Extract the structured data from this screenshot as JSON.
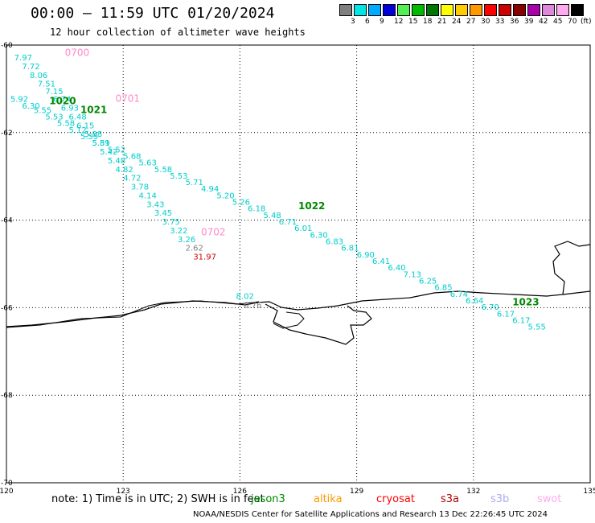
{
  "title": "00:00 – 11:59 UTC 01/20/2024",
  "subtitle": "12 hour collection of altimeter wave heights",
  "legend": {
    "labels": [
      "3",
      "6",
      "9",
      "12",
      "15",
      "18",
      "21",
      "24",
      "27",
      "30",
      "33",
      "36",
      "39",
      "42",
      "45",
      "70"
    ],
    "unit": "(ft)",
    "colors": [
      "#7f7f7f",
      "#00e5e5",
      "#00aaff",
      "#0000dd",
      "#55ee55",
      "#00bb00",
      "#007700",
      "#ffff00",
      "#ffcc00",
      "#ff9900",
      "#ff0000",
      "#cc0000",
      "#880000",
      "#aa00aa",
      "#dd88dd",
      "#ffaaee",
      "#000000"
    ]
  },
  "axes": {
    "lon_ticks": [
      "120",
      "123",
      "126",
      "129",
      "132",
      "135"
    ],
    "lat_ticks": [
      "-60",
      "-62",
      "-64",
      "-66",
      "-68",
      "-70"
    ],
    "lon_range": [
      120,
      135
    ],
    "lat_range": [
      -70,
      -60
    ],
    "grid": true
  },
  "tracks": [
    {
      "label": "0700",
      "label_color": "#ff88cc",
      "points": [
        {
          "lon": 120.2,
          "lat": -60.35,
          "v": "7.97"
        },
        {
          "lon": 120.4,
          "lat": -60.55,
          "v": "7.72"
        },
        {
          "lon": 120.6,
          "lat": -60.75,
          "v": "8.06"
        },
        {
          "lon": 120.8,
          "lat": -60.95,
          "v": "7.51"
        },
        {
          "lon": 121.0,
          "lat": -61.12,
          "v": "7.15"
        },
        {
          "lon": 121.2,
          "lat": -61.3,
          "v": "6.74"
        },
        {
          "lon": 121.4,
          "lat": -61.5,
          "v": "6.93"
        },
        {
          "lon": 121.6,
          "lat": -61.7,
          "v": "6.48"
        },
        {
          "lon": 121.8,
          "lat": -61.9,
          "v": "6.15"
        },
        {
          "lon": 122.0,
          "lat": -62.1,
          "v": "5.88"
        },
        {
          "lon": 122.2,
          "lat": -62.3,
          "v": "5.59"
        },
        {
          "lon": 122.4,
          "lat": -62.5,
          "v": "5.42"
        },
        {
          "lon": 122.6,
          "lat": -62.7,
          "v": "5.48"
        },
        {
          "lon": 122.8,
          "lat": -62.9,
          "v": "4.82"
        },
        {
          "lon": 123.0,
          "lat": -63.1,
          "v": "4.72"
        },
        {
          "lon": 123.2,
          "lat": -63.3,
          "v": "3.78"
        },
        {
          "lon": 123.4,
          "lat": -63.5,
          "v": "4.14"
        },
        {
          "lon": 123.6,
          "lat": -63.7,
          "v": "3.43"
        },
        {
          "lon": 123.8,
          "lat": -63.9,
          "v": "3.45"
        },
        {
          "lon": 124.0,
          "lat": -64.1,
          "v": "3.75"
        },
        {
          "lon": 124.2,
          "lat": -64.3,
          "v": "3.22"
        },
        {
          "lon": 124.4,
          "lat": -64.5,
          "v": "3.26"
        },
        {
          "lon": 124.6,
          "lat": -64.7,
          "v": "2.62",
          "color": "#7f7f7f"
        },
        {
          "lon": 124.8,
          "lat": -64.9,
          "v": "31.97",
          "color": "#cc0000"
        }
      ]
    },
    {
      "label": "0701",
      "label_color": "#ff88cc",
      "points": [
        {
          "lon": 120.1,
          "lat": -61.3,
          "v": "5.92"
        },
        {
          "lon": 120.4,
          "lat": -61.45,
          "v": "6.30"
        },
        {
          "lon": 120.7,
          "lat": -61.55,
          "v": "5.55"
        },
        {
          "lon": 121.0,
          "lat": -61.7,
          "v": "5.53"
        },
        {
          "lon": 121.3,
          "lat": -61.85,
          "v": "5.58"
        },
        {
          "lon": 121.6,
          "lat": -62.0,
          "v": "5.12"
        },
        {
          "lon": 121.9,
          "lat": -62.15,
          "v": "5.55"
        },
        {
          "lon": 122.2,
          "lat": -62.3,
          "v": "5.81"
        },
        {
          "lon": 122.6,
          "lat": -62.45,
          "v": "5.52"
        },
        {
          "lon": 123.0,
          "lat": -62.6,
          "v": "5.68"
        },
        {
          "lon": 123.4,
          "lat": -62.75,
          "v": "5.63"
        },
        {
          "lon": 123.8,
          "lat": -62.9,
          "v": "5.58"
        },
        {
          "lon": 124.2,
          "lat": -63.05,
          "v": "5.53"
        },
        {
          "lon": 124.6,
          "lat": -63.2,
          "v": "5.71"
        },
        {
          "lon": 125.0,
          "lat": -63.35,
          "v": "4.94"
        },
        {
          "lon": 125.4,
          "lat": -63.5,
          "v": "5.20"
        },
        {
          "lon": 125.8,
          "lat": -63.65,
          "v": "5.26"
        },
        {
          "lon": 126.2,
          "lat": -63.8,
          "v": "6.18"
        },
        {
          "lon": 126.6,
          "lat": -63.95,
          "v": "5.48"
        },
        {
          "lon": 127.0,
          "lat": -64.1,
          "v": "6.71"
        },
        {
          "lon": 127.4,
          "lat": -64.25,
          "v": "6.01"
        },
        {
          "lon": 127.8,
          "lat": -64.4,
          "v": "6.30"
        },
        {
          "lon": 128.2,
          "lat": -64.55,
          "v": "6.83"
        },
        {
          "lon": 128.6,
          "lat": -64.7,
          "v": "6.81"
        },
        {
          "lon": 129.0,
          "lat": -64.85,
          "v": "6.90"
        },
        {
          "lon": 129.4,
          "lat": -65.0,
          "v": "6.41"
        },
        {
          "lon": 129.8,
          "lat": -65.15,
          "v": "6.40"
        },
        {
          "lon": 130.2,
          "lat": -65.3,
          "v": "7.13"
        },
        {
          "lon": 130.6,
          "lat": -65.45,
          "v": "6.25"
        },
        {
          "lon": 131.0,
          "lat": -65.6,
          "v": "6.85"
        },
        {
          "lon": 131.4,
          "lat": -65.75,
          "v": "6.74"
        },
        {
          "lon": 131.8,
          "lat": -65.9,
          "v": "6.64"
        },
        {
          "lon": 132.2,
          "lat": -66.05,
          "v": "6.70"
        },
        {
          "lon": 132.6,
          "lat": -66.2,
          "v": "6.17"
        },
        {
          "lon": 133.0,
          "lat": -66.35,
          "v": "6.17"
        },
        {
          "lon": 133.4,
          "lat": -66.5,
          "v": "5.55"
        }
      ]
    },
    {
      "label": "0702",
      "label_color": "#ff88cc",
      "points": [
        {
          "lon": 125.9,
          "lat": -65.8,
          "v": "8.02"
        },
        {
          "lon": 126.1,
          "lat": -66.0,
          "v": "0.76",
          "color": "#7f7f7f"
        }
      ]
    }
  ],
  "cycles": [
    {
      "text": "1020",
      "color": "#008800"
    },
    {
      "text": "1021",
      "color": "#008800"
    },
    {
      "text": "1022",
      "color": "#008800"
    },
    {
      "text": "1023",
      "color": "#008800"
    }
  ],
  "note": "note:  1) Time is in UTC; 2) SWH is in feet",
  "satellites": [
    {
      "name": "jason3",
      "color": "#008800"
    },
    {
      "name": "altika",
      "color": "#ff9900"
    },
    {
      "name": "cryosat",
      "color": "#ff0000"
    },
    {
      "name": "s3a",
      "color": "#aa0000"
    },
    {
      "name": "s3b",
      "color": "#aaaaee"
    },
    {
      "name": "swot",
      "color": "#ffaaee"
    }
  ],
  "footer": "NOAA/NESDIS Center for Satellite Applications and Research    13 Dec 22:26:45 UTC 2024"
}
